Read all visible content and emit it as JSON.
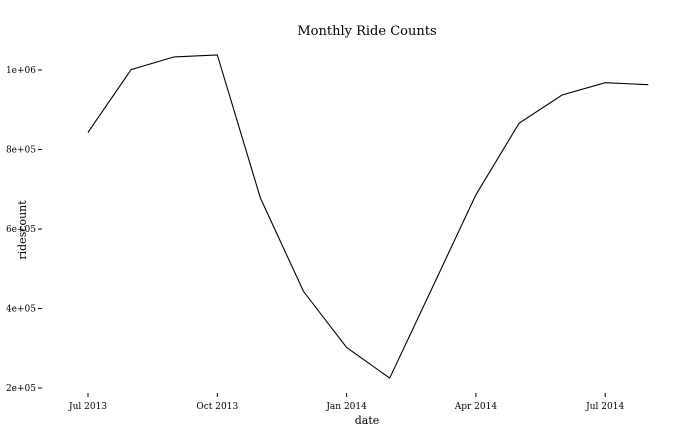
{
  "chart_data": {
    "type": "line",
    "title": "Monthly Ride Counts",
    "xlabel": "date",
    "ylabel": "ridescount",
    "x_ticks": [
      "Jul 2013",
      "Oct 2013",
      "Jan 2014",
      "Apr 2014",
      "Jul 2014"
    ],
    "y_ticks": [
      "2e+05",
      "4e+05",
      "6e+05",
      "8e+05",
      "1e+06"
    ],
    "y_tick_values": [
      200000,
      400000,
      600000,
      800000,
      1000000
    ],
    "ylim": [
      190000,
      1060000
    ],
    "x": [
      "2013-07",
      "2013-08",
      "2013-09",
      "2013-10",
      "2013-11",
      "2013-12",
      "2014-01",
      "2014-02",
      "2014-03",
      "2014-04",
      "2014-05",
      "2014-06",
      "2014-07",
      "2014-08"
    ],
    "values": [
      843000,
      1001000,
      1033000,
      1038000,
      678000,
      443000,
      302000,
      225000,
      455000,
      686000,
      866000,
      937000,
      968000,
      963000
    ],
    "grid": false,
    "legend": "none",
    "line_color": "#000000"
  }
}
